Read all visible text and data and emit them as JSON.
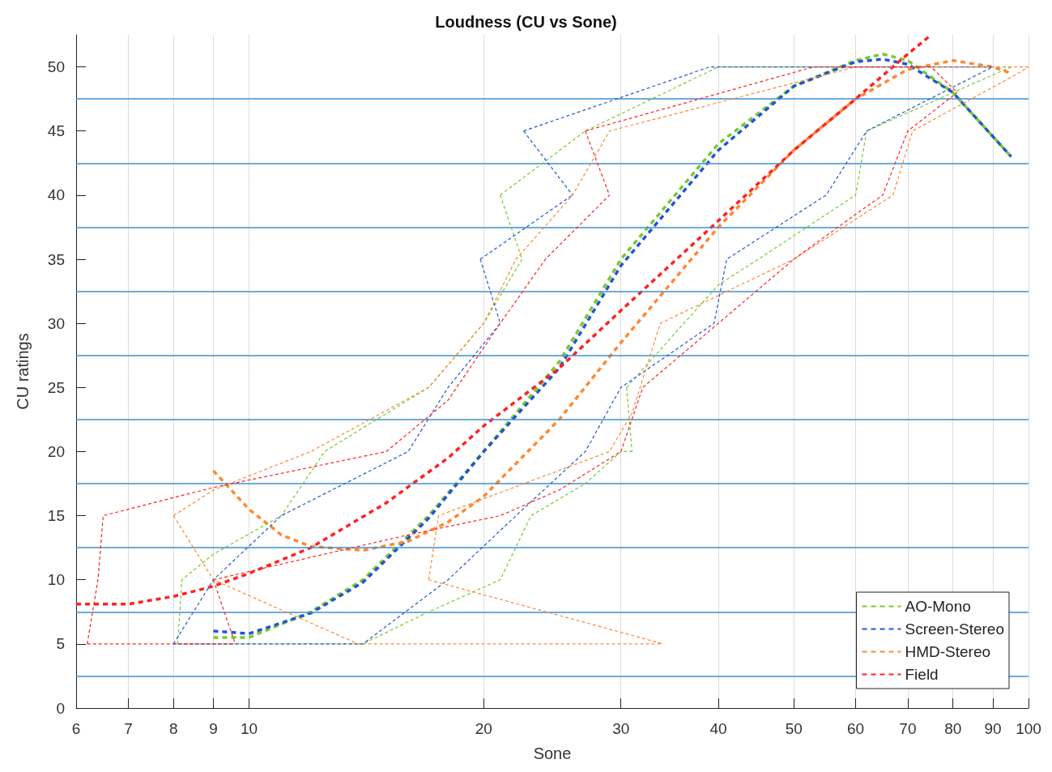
{
  "chart_data": {
    "type": "line",
    "title": "Loudness (CU vs Sone)",
    "xlabel": "Sone",
    "ylabel": "CU ratings",
    "log": "x",
    "grid": "x",
    "legend": "bottom right",
    "line_style": "dashed",
    "marker": "none",
    "xlim": [
      6,
      100
    ],
    "xticks": [
      6,
      7,
      8,
      9,
      10,
      20,
      30,
      40,
      50,
      60,
      70,
      80,
      90,
      100
    ],
    "ylim": [
      0,
      52.5
    ],
    "yticks": [
      0,
      5,
      10,
      15,
      20,
      25,
      30,
      35,
      40,
      45,
      50
    ],
    "ref_lines": [
      {
        "axis": "y",
        "value": 2.5,
        "color": "#3d8fd1"
      },
      {
        "axis": "y",
        "value": 7.5,
        "color": "#3d8fd1"
      },
      {
        "axis": "y",
        "value": 12.5,
        "color": "#3d8fd1"
      },
      {
        "axis": "y",
        "value": 17.5,
        "color": "#3d8fd1"
      },
      {
        "axis": "y",
        "value": 22.5,
        "color": "#3d8fd1"
      },
      {
        "axis": "y",
        "value": 27.5,
        "color": "#3d8fd1"
      },
      {
        "axis": "y",
        "value": 32.5,
        "color": "#3d8fd1"
      },
      {
        "axis": "y",
        "value": 37.5,
        "color": "#3d8fd1"
      },
      {
        "axis": "y",
        "value": 42.5,
        "color": "#3d8fd1"
      },
      {
        "axis": "y",
        "value": 47.5,
        "color": "#3d8fd1"
      }
    ],
    "series": [
      {
        "color": "#77c92e",
        "x": [
          8.1,
          14,
          17,
          21,
          23,
          27,
          30,
          31
        ],
        "values": [
          5,
          5,
          7.5,
          10,
          15,
          17.5,
          20,
          20
        ]
      },
      {
        "color": "#77c92e",
        "x": [
          30.5,
          31
        ],
        "values": [
          25,
          20
        ]
      },
      {
        "color": "#77c92e",
        "x": [
          30.5,
          40,
          45,
          60,
          62,
          80,
          95
        ],
        "values": [
          25,
          33,
          35,
          40,
          45,
          48,
          50
        ]
      },
      {
        "color": "#77c92e",
        "x": [
          8.1,
          8.2,
          9,
          11,
          12.5,
          17,
          20,
          22.4
        ],
        "values": [
          5,
          10,
          12,
          15,
          20,
          25,
          30,
          35
        ]
      },
      {
        "color": "#77c92e",
        "x": [
          21,
          22.4
        ],
        "values": [
          40,
          35
        ]
      },
      {
        "color": "#77c92e",
        "x": [
          21,
          27,
          40,
          95
        ],
        "values": [
          40,
          45,
          50,
          50
        ]
      },
      {
        "color": "#2255d4",
        "x": [
          8,
          14,
          18,
          22,
          27,
          30,
          39.5,
          41,
          55,
          62,
          90
        ],
        "values": [
          5,
          5,
          10,
          15,
          20,
          25,
          30,
          35,
          40,
          45,
          50
        ]
      },
      {
        "color": "#2255d4",
        "x": [
          22.5,
          39,
          90
        ],
        "values": [
          45,
          50,
          50
        ]
      },
      {
        "color": "#2255d4",
        "x": [
          22.5,
          26
        ],
        "values": [
          45,
          40
        ]
      },
      {
        "color": "#2255d4",
        "x": [
          19.8,
          26
        ],
        "values": [
          35,
          40
        ]
      },
      {
        "color": "#2255d4",
        "x": [
          19.8,
          21
        ],
        "values": [
          35,
          30
        ]
      },
      {
        "color": "#2255d4",
        "x": [
          8,
          9,
          11,
          16,
          18,
          21
        ],
        "values": [
          5,
          10,
          15,
          20,
          25,
          30
        ]
      },
      {
        "color": "#ff8833",
        "x": [
          8,
          9,
          13.8,
          34
        ],
        "values": [
          15,
          10,
          5,
          5
        ]
      },
      {
        "color": "#ff8833",
        "x": [
          17,
          34
        ],
        "values": [
          10,
          5
        ]
      },
      {
        "color": "#ff8833",
        "x": [
          17,
          17.5,
          29,
          31,
          33.7,
          50,
          67,
          71,
          97,
          100
        ],
        "values": [
          10,
          15,
          20,
          23,
          30,
          35,
          40,
          45,
          49.5,
          50
        ]
      },
      {
        "color": "#ff8833",
        "x": [
          8,
          9,
          12,
          17,
          20,
          22,
          26,
          29,
          60,
          100
        ],
        "values": [
          15,
          17,
          20,
          25,
          30,
          35,
          40,
          45,
          50,
          50
        ]
      },
      {
        "color": "#ff2222",
        "x": [
          6.2,
          9.6
        ],
        "values": [
          5,
          5
        ]
      },
      {
        "color": "#ff2222",
        "x": [
          9,
          9.6
        ],
        "values": [
          10,
          5
        ]
      },
      {
        "color": "#ff2222",
        "x": [
          9,
          16,
          21,
          25,
          30,
          32,
          40,
          50,
          60,
          65,
          70,
          81
        ],
        "values": [
          10,
          13.5,
          15,
          17,
          20,
          25,
          30,
          35,
          38.5,
          40,
          45,
          48
        ]
      },
      {
        "color": "#ff2222",
        "x": [
          27,
          53,
          75,
          81
        ],
        "values": [
          45,
          50,
          50,
          48
        ]
      },
      {
        "color": "#ff2222",
        "x": [
          27,
          29
        ],
        "values": [
          45,
          40
        ]
      },
      {
        "color": "#ff2222",
        "x": [
          6.2,
          6.4,
          6.5,
          9,
          15,
          18,
          21,
          24,
          29
        ],
        "values": [
          5,
          10,
          15,
          17.2,
          20,
          24,
          30,
          35,
          40
        ]
      },
      {
        "name": "AO-Mono",
        "color": "#77c92e",
        "x": [
          9,
          10,
          12,
          14,
          17,
          20,
          25,
          30,
          40,
          50,
          60,
          65,
          70,
          80,
          95
        ],
        "values": [
          5.5,
          5.5,
          7.5,
          10,
          15,
          20,
          27,
          35,
          44,
          48.5,
          50.5,
          51,
          50.5,
          48,
          43
        ]
      },
      {
        "name": "Screen-Stereo",
        "color": "#2255d4",
        "x": [
          9,
          10,
          12,
          14,
          17,
          20,
          25,
          30,
          40,
          50,
          60,
          65,
          70,
          80,
          95
        ],
        "values": [
          6,
          5.8,
          7.4,
          9.8,
          14.8,
          20,
          26.5,
          34.5,
          43.5,
          48.5,
          50.4,
          50.6,
          50.2,
          48,
          43
        ]
      },
      {
        "name": "HMD-Stereo",
        "color": "#ff8833",
        "x": [
          9,
          10,
          11,
          12,
          14,
          16,
          18,
          20,
          25,
          30,
          40,
          50,
          60,
          70,
          80,
          90,
          95
        ],
        "values": [
          18.5,
          15.5,
          13.5,
          12.6,
          12.3,
          13,
          14.5,
          16.5,
          22.5,
          28.5,
          37.5,
          43.5,
          47.5,
          49.8,
          50.5,
          50,
          49.5
        ]
      },
      {
        "name": "Field",
        "color": "#ff2222",
        "x": [
          6,
          7,
          8,
          9,
          10,
          12,
          15,
          18,
          20,
          25,
          30,
          40,
          50,
          60,
          70,
          75
        ],
        "values": [
          8.1,
          8.1,
          8.7,
          9.5,
          10.5,
          12.5,
          16,
          19.5,
          22,
          26.5,
          31,
          38,
          43.5,
          47.5,
          51,
          52.5
        ]
      }
    ]
  }
}
